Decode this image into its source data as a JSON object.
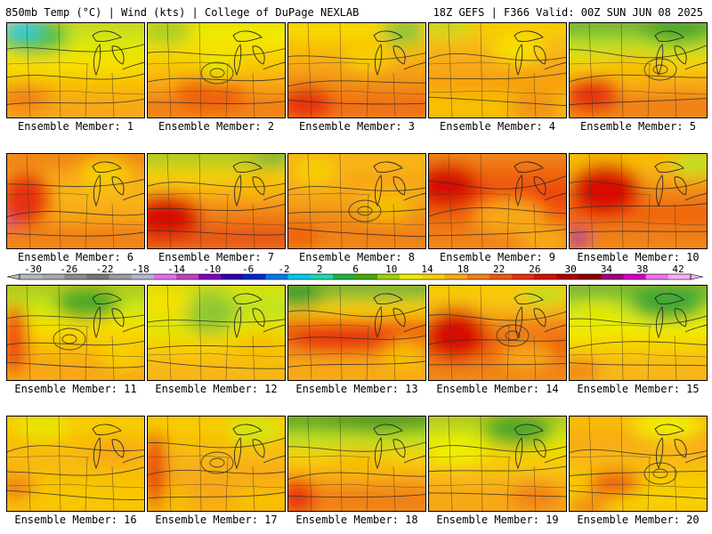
{
  "header": {
    "left": "850mb Temp (°C) | Wind (kts) | College of DuPage NEXLAB",
    "right": "18Z GEFS | F366 Valid: 00Z SUN JUN 08 2025"
  },
  "colorbar": {
    "tick_labels": [
      "-30",
      "-26",
      "-22",
      "-18",
      "-14",
      "-10",
      "-6",
      "-2",
      "2",
      "6",
      "10",
      "14",
      "18",
      "22",
      "26",
      "30",
      "34",
      "38",
      "42"
    ],
    "colors": [
      "#b8b8b8",
      "#a8a8a8",
      "#8c8c8c",
      "#767676",
      "#9c9c9c",
      "#b4b4d4",
      "#e070f0",
      "#c040c0",
      "#8000c0",
      "#3000a8",
      "#0028d0",
      "#0078f0",
      "#00c8f0",
      "#20d8b0",
      "#20b040",
      "#48a800",
      "#a0d000",
      "#ecec00",
      "#f8d000",
      "#f8a818",
      "#f08018",
      "#f05810",
      "#e83010",
      "#d81000",
      "#b00000",
      "#880000",
      "#a00080",
      "#d000c0",
      "#f070f0",
      "#f8b0f8"
    ]
  },
  "panels": [
    {
      "label": "Ensemble Member: 1",
      "bands": [
        "#c0e020",
        "#e0e800",
        "#f8e000",
        "#f8c000",
        "#f8a818"
      ],
      "blobs": [
        {
          "color": "#50c040"
        },
        {
          "color": "#00d0f0"
        },
        {
          "color": "#f08018"
        }
      ]
    },
    {
      "label": "Ensemble Member: 2",
      "bands": [
        "#e8f000",
        "#f8e000",
        "#f8c800",
        "#f8a818",
        "#f08018"
      ],
      "blobs": [
        {
          "color": "#a8d020"
        },
        {
          "color": "#f06010"
        },
        {
          "color": "#e8e800"
        }
      ]
    },
    {
      "label": "Ensemble Member: 3",
      "bands": [
        "#f8e000",
        "#f8c000",
        "#f8a818",
        "#f09018",
        "#f07018"
      ],
      "blobs": [
        {
          "color": "#88c838"
        },
        {
          "color": "#e83010"
        },
        {
          "color": "#f8d000"
        }
      ]
    },
    {
      "label": "Ensemble Member: 4",
      "bands": [
        "#f8d000",
        "#f8b818",
        "#f8a818",
        "#f8a010",
        "#f8c000"
      ],
      "blobs": [
        {
          "color": "#c0e020"
        },
        {
          "color": "#f8e000"
        },
        {
          "color": "#f09018"
        }
      ]
    },
    {
      "label": "Ensemble Member: 5",
      "bands": [
        "#60b838",
        "#c0e020",
        "#f8d000",
        "#f8a818",
        "#f08018"
      ],
      "blobs": [
        {
          "color": "#40a830"
        },
        {
          "color": "#e83010"
        },
        {
          "color": "#f8c000"
        }
      ]
    },
    {
      "label": "Ensemble Member: 6",
      "bands": [
        "#f08018",
        "#f8a818",
        "#f8b818",
        "#f8a818",
        "#f08018"
      ],
      "blobs": [
        {
          "color": "#c000b0"
        },
        {
          "color": "#e83010"
        },
        {
          "color": "#f8d000"
        }
      ]
    },
    {
      "label": "Ensemble Member: 7",
      "bands": [
        "#a8d020",
        "#f8d000",
        "#f8a818",
        "#f08018",
        "#e85818"
      ],
      "blobs": [
        {
          "color": "#60b838"
        },
        {
          "color": "#d81000"
        },
        {
          "color": "#f8c000"
        }
      ]
    },
    {
      "label": "Ensemble Member: 8",
      "bands": [
        "#f8b818",
        "#f8a818",
        "#f8a818",
        "#f09018",
        "#f08018"
      ],
      "blobs": [
        {
          "color": "#f8d000"
        },
        {
          "color": "#f06010"
        },
        {
          "color": "#f8c000"
        }
      ]
    },
    {
      "label": "Ensemble Member: 9",
      "bands": [
        "#f08018",
        "#f06010",
        "#f04010",
        "#f06010",
        "#f08018"
      ],
      "blobs": [
        {
          "color": "#f8a818"
        },
        {
          "color": "#d81000"
        },
        {
          "color": "#f8a818"
        }
      ]
    },
    {
      "label": "Ensemble Member: 10",
      "bands": [
        "#f8c000",
        "#f8a818",
        "#f08018",
        "#f06010",
        "#f08018"
      ],
      "blobs": [
        {
          "color": "#c0e020"
        },
        {
          "color": "#d81000"
        },
        {
          "color": "#a00090"
        }
      ]
    },
    {
      "label": "Ensemble Member: 11",
      "bands": [
        "#a8d020",
        "#d0e810",
        "#f8e000",
        "#f8c000",
        "#f8a818"
      ],
      "blobs": [
        {
          "color": "#48a828"
        },
        {
          "color": "#f04010"
        },
        {
          "color": "#f8d000"
        }
      ]
    },
    {
      "label": "Ensemble Member: 12",
      "bands": [
        "#d0e810",
        "#c0e020",
        "#e0e800",
        "#f8d000",
        "#f8b818"
      ],
      "blobs": [
        {
          "color": "#90c830"
        },
        {
          "color": "#f8c000"
        },
        {
          "color": "#f8e000"
        }
      ]
    },
    {
      "label": "Ensemble Member: 13",
      "bands": [
        "#60b838",
        "#f8d000",
        "#f06010",
        "#f08018",
        "#f8a818"
      ],
      "blobs": [
        {
          "color": "#30a030"
        },
        {
          "color": "#e83010"
        },
        {
          "color": "#f8c000"
        }
      ]
    },
    {
      "label": "Ensemble Member: 14",
      "bands": [
        "#f8d000",
        "#f8b818",
        "#f08018",
        "#f06010",
        "#f08018"
      ],
      "blobs": [
        {
          "color": "#c0e020"
        },
        {
          "color": "#d81000"
        },
        {
          "color": "#f8a818"
        }
      ]
    },
    {
      "label": "Ensemble Member: 15",
      "bands": [
        "#60b838",
        "#c0e020",
        "#f0f000",
        "#f8d000",
        "#f8b818"
      ],
      "blobs": [
        {
          "color": "#40a830"
        },
        {
          "color": "#f08018"
        },
        {
          "color": "#e0e800"
        }
      ]
    },
    {
      "label": "Ensemble Member: 16",
      "bands": [
        "#f8d000",
        "#f8c000",
        "#f8b818",
        "#f8c000",
        "#f8c800"
      ],
      "blobs": [
        {
          "color": "#e8e800"
        },
        {
          "color": "#f08018"
        },
        {
          "color": "#f8a818"
        }
      ]
    },
    {
      "label": "Ensemble Member: 17",
      "bands": [
        "#f8d000",
        "#f8c000",
        "#f8b818",
        "#f8a818",
        "#f8c000"
      ],
      "blobs": [
        {
          "color": "#d0e810"
        },
        {
          "color": "#e83010"
        },
        {
          "color": "#f8a818"
        }
      ]
    },
    {
      "label": "Ensemble Member: 18",
      "bands": [
        "#48a828",
        "#c0e020",
        "#f8d000",
        "#f8a818",
        "#f08018"
      ],
      "blobs": [
        {
          "color": "#309828"
        },
        {
          "color": "#e83010"
        },
        {
          "color": "#f8c000"
        }
      ]
    },
    {
      "label": "Ensemble Member: 19",
      "bands": [
        "#a8d020",
        "#e0e800",
        "#f8d000",
        "#f8b818",
        "#f8a818"
      ],
      "blobs": [
        {
          "color": "#48a828"
        },
        {
          "color": "#f08018"
        },
        {
          "color": "#f0f000"
        }
      ]
    },
    {
      "label": "Ensemble Member: 20",
      "bands": [
        "#f8c000",
        "#f8a818",
        "#f8b818",
        "#f8c800",
        "#f8d000"
      ],
      "blobs": [
        {
          "color": "#f08018"
        },
        {
          "color": "#f06010"
        },
        {
          "color": "#f0f000"
        }
      ]
    }
  ]
}
